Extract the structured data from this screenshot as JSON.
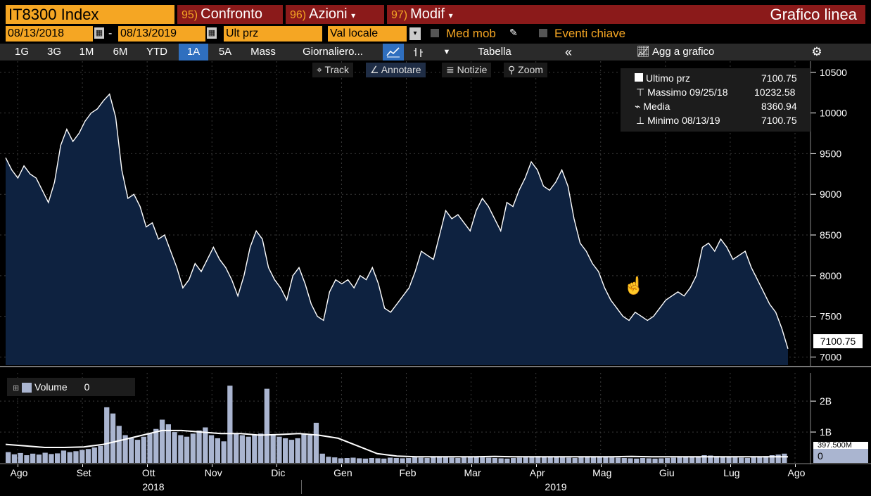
{
  "header": {
    "ticker": "IT8300 Index",
    "btn_compare": {
      "num": "95)",
      "label": "Confronto"
    },
    "btn_actions": {
      "num": "96)",
      "label": "Azioni"
    },
    "btn_modify": {
      "num": "97)",
      "label": "Modif"
    },
    "chart_type_label": "Grafico linea"
  },
  "filters": {
    "start_date": "08/13/2018",
    "dash": "-",
    "end_date": "08/13/2019",
    "price_field": "Ult prz",
    "currency": "Val locale",
    "moving_avg": "Med mob",
    "key_events": "Eventi chiave"
  },
  "toolbar": {
    "ranges": [
      "1G",
      "3G",
      "1M",
      "6M",
      "YTD",
      "1A",
      "5A",
      "Mass"
    ],
    "active_range": "1A",
    "frequency": "Giornaliero...",
    "table": "Tabella",
    "collapse": "«",
    "add_to_chart": "Agg a grafico"
  },
  "overlay_tools": [
    "Track",
    "Annotare",
    "Notizie",
    "Zoom"
  ],
  "legend": {
    "rows": [
      {
        "label": "Ultimo prz",
        "value": "7100.75"
      },
      {
        "label": "Massimo 09/25/18",
        "value": "10232.58"
      },
      {
        "label": "Media",
        "value": "8360.94"
      },
      {
        "label": "Minimo 08/13/19",
        "value": "7100.75"
      }
    ]
  },
  "last_price_tag": "7100.75",
  "volume_legend": {
    "label": "Volume",
    "value": "0"
  },
  "volume_tag": "0",
  "volume_hidden_tag": "397.500M",
  "colors": {
    "orange": "#f5a623",
    "red": "#8b1a1a",
    "blue": "#2f6fbf",
    "area": "#0e2240"
  },
  "chart_data": [
    {
      "type": "area",
      "ylim": [
        6900,
        10500
      ],
      "yticks": [
        "10500",
        "10000",
        "9500",
        "9000",
        "8500",
        "8000",
        "7500",
        "7000"
      ],
      "x_labels": [
        "Ago",
        "Set",
        "Ott",
        "Nov",
        "Dic",
        "Gen",
        "Feb",
        "Mar",
        "Apr",
        "Mag",
        "Giu",
        "Lug",
        "Ago"
      ],
      "years": [
        "2018",
        "2019"
      ],
      "values": [
        9450,
        9300,
        9200,
        9350,
        9250,
        9200,
        9050,
        8900,
        9150,
        9600,
        9800,
        9650,
        9750,
        9900,
        10000,
        10050,
        10150,
        10232,
        9950,
        9300,
        8950,
        9000,
        8850,
        8600,
        8650,
        8450,
        8500,
        8300,
        8100,
        7850,
        7950,
        8150,
        8050,
        8200,
        8350,
        8200,
        8100,
        7950,
        7750,
        8000,
        8350,
        8550,
        8450,
        8100,
        7950,
        7850,
        7700,
        8000,
        8100,
        7900,
        7650,
        7500,
        7450,
        7800,
        7950,
        7900,
        7950,
        7850,
        8000,
        7950,
        8100,
        7900,
        7600,
        7550,
        7650,
        7750,
        7850,
        8050,
        8300,
        8250,
        8200,
        8500,
        8800,
        8700,
        8750,
        8650,
        8550,
        8800,
        8950,
        8850,
        8700,
        8550,
        8900,
        8850,
        9050,
        9200,
        9400,
        9300,
        9100,
        9050,
        9150,
        9300,
        9100,
        8700,
        8400,
        8300,
        8150,
        8050,
        7850,
        7700,
        7600,
        7500,
        7450,
        7550,
        7500,
        7450,
        7500,
        7600,
        7700,
        7750,
        7800,
        7750,
        7850,
        8000,
        8350,
        8400,
        8300,
        8450,
        8350,
        8200,
        8250,
        8300,
        8100,
        7950,
        7800,
        7650,
        7550,
        7350,
        7100.75
      ],
      "series_name": ""
    },
    {
      "type": "bar",
      "yticks": [
        "2B",
        "1B"
      ],
      "note": "volume",
      "values": [
        0.35,
        0.28,
        0.32,
        0.25,
        0.3,
        0.27,
        0.33,
        0.29,
        0.31,
        0.4,
        0.35,
        0.38,
        0.42,
        0.45,
        0.5,
        0.55,
        1.8,
        1.6,
        1.2,
        0.9,
        0.8,
        0.75,
        0.85,
        0.95,
        1.1,
        1.4,
        1.25,
        1.0,
        0.9,
        0.85,
        0.95,
        1.05,
        1.15,
        0.9,
        0.8,
        0.7,
        2.5,
        0.95,
        0.9,
        0.85,
        0.9,
        0.95,
        2.4,
        0.9,
        0.85,
        0.8,
        0.75,
        0.8,
        0.95,
        0.9,
        1.3,
        0.3,
        0.2,
        0.18,
        0.15,
        0.16,
        0.17,
        0.15,
        0.14,
        0.16,
        0.15,
        0.14,
        0.17,
        0.16,
        0.15,
        0.16,
        0.18,
        0.17,
        0.16,
        0.19,
        0.2,
        0.18,
        0.17,
        0.16,
        0.18,
        0.19,
        0.2,
        0.18,
        0.17,
        0.16,
        0.15,
        0.14,
        0.16,
        0.17,
        0.18,
        0.2,
        0.22,
        0.21,
        0.2,
        0.19,
        0.18,
        0.17,
        0.16,
        0.18,
        0.19,
        0.2,
        0.21,
        0.19,
        0.18,
        0.17,
        0.16,
        0.15,
        0.14,
        0.16,
        0.15,
        0.14,
        0.15,
        0.16,
        0.17,
        0.18,
        0.19,
        0.2,
        0.21,
        0.25,
        0.24,
        0.22,
        0.2,
        0.19,
        0.18,
        0.17,
        0.16,
        0.18,
        0.2,
        0.22,
        0.25,
        0.27,
        0.3
      ],
      "avg": [
        0.6,
        0.55,
        0.5,
        0.5,
        0.52,
        0.6,
        0.75,
        0.9,
        1.05,
        1.05,
        1.0,
        0.95,
        0.95,
        0.9,
        0.92,
        0.95,
        0.9,
        0.8,
        0.55,
        0.3,
        0.22,
        0.2,
        0.2,
        0.2,
        0.2,
        0.21,
        0.2,
        0.2,
        0.2,
        0.2,
        0.2,
        0.2,
        0.21,
        0.2,
        0.2,
        0.2,
        0.2,
        0.2,
        0.2,
        0.2,
        0.2
      ]
    }
  ]
}
